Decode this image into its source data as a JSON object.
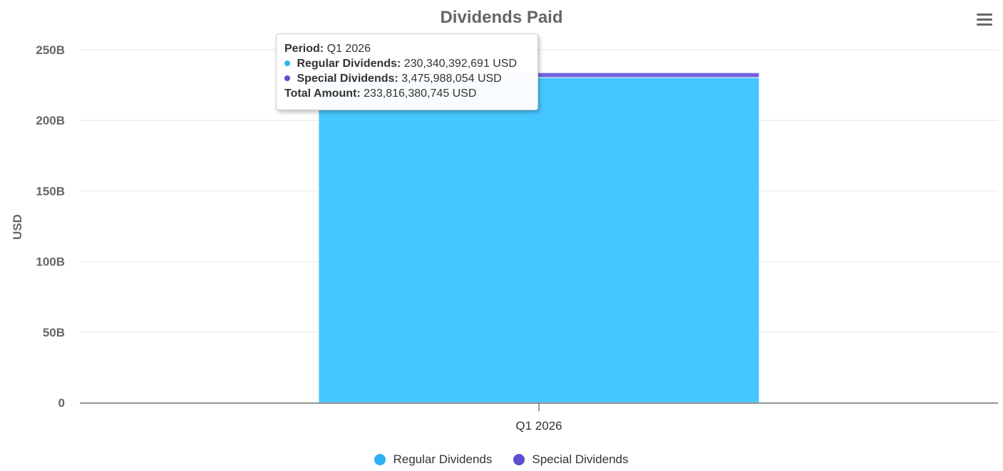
{
  "chart_data": {
    "type": "bar",
    "stacked": true,
    "title": "Dividends Paid",
    "ylabel": "USD",
    "xlabel": "",
    "categories": [
      "Q1 2026"
    ],
    "ylim": [
      0,
      250000000000
    ],
    "y_ticks": [
      {
        "value": 0,
        "label": "0"
      },
      {
        "value": 50000000000,
        "label": "50B"
      },
      {
        "value": 100000000000,
        "label": "100B"
      },
      {
        "value": 150000000000,
        "label": "150B"
      },
      {
        "value": 200000000000,
        "label": "200B"
      },
      {
        "value": 250000000000,
        "label": "250B"
      }
    ],
    "grid": true,
    "legend_position": "bottom-center",
    "series": [
      {
        "name": "Regular Dividends",
        "color": "#45c6ff",
        "legend_color": "#2db0f5",
        "values": [
          230340392691
        ]
      },
      {
        "name": "Special Dividends",
        "color": "#6f63dd",
        "legend_color": "#5a4fcf",
        "values": [
          3475988054
        ]
      }
    ]
  },
  "menu": {
    "icon": "hamburger-menu-icon"
  },
  "tooltip": {
    "period_label": "Period:",
    "period_value": "Q1 2026",
    "rows": [
      {
        "label": "Regular Dividends:",
        "value": "230,340,392,691 USD",
        "color": "#2db0f5"
      },
      {
        "label": "Special Dividends:",
        "value": "3,475,988,054 USD",
        "color": "#5a4fcf"
      }
    ],
    "total_label": "Total Amount:",
    "total_value": "233,816,380,745 USD"
  }
}
